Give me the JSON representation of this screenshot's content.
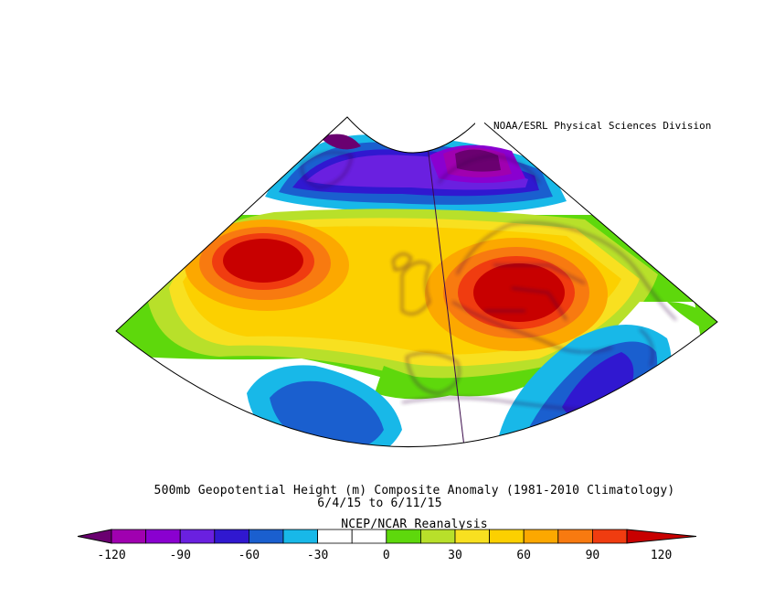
{
  "credit": "NOAA/ESRL Physical Sciences Division",
  "title_line1": "500mb Geopotential Height (m) Composite Anomaly (1981-2010 Climatology)",
  "title_line2": "6/4/15  to 6/11/15",
  "title_line3": "NCEP/NCAR Reanalysis",
  "colorbar": {
    "colors": [
      "#6a0070",
      "#a000b0",
      "#8a00d0",
      "#6a20e0",
      "#3018d0",
      "#1a5fcf",
      "#18b8e8",
      "#ffffff",
      "#ffffff",
      "#5ed80c",
      "#b8e02a",
      "#f8e020",
      "#fcd000",
      "#fca800",
      "#f87a10",
      "#f03c10",
      "#c80000"
    ],
    "tick_labels": [
      "-120",
      "-90",
      "-60",
      "-30",
      "0",
      "30",
      "60",
      "90",
      "120"
    ]
  },
  "map": {
    "projection": "conic",
    "region": "North Atlantic and Europe",
    "features": [
      {
        "name": "positive-anomaly-mid-atlantic",
        "level": 120
      },
      {
        "name": "positive-anomaly-central-europe",
        "level": 120
      },
      {
        "name": "negative-anomaly-scandinavia-greenland",
        "level": -120
      },
      {
        "name": "negative-anomaly-eastern-mediterranean",
        "level": -90
      },
      {
        "name": "negative-anomaly-subtropical-atlantic",
        "level": -60
      }
    ]
  }
}
